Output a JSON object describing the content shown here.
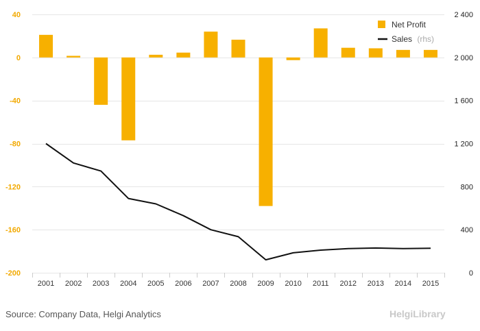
{
  "colors": {
    "profit": "#f7b000",
    "sales": "#111111",
    "grid": "#e6e6e6",
    "left_axis": "#f2a900"
  },
  "footer": {
    "source": "Source: Company Data, Helgi Analytics",
    "brand": "HelgiLibrary"
  },
  "chart_data": {
    "type": "bar",
    "categories": [
      "2001",
      "2002",
      "2003",
      "2004",
      "2005",
      "2006",
      "2007",
      "2008",
      "2009",
      "2010",
      "2011",
      "2012",
      "2013",
      "2014",
      "2015"
    ],
    "series": [
      {
        "name": "Net Profit",
        "type": "bar",
        "axis": "left",
        "values": [
          21,
          1.5,
          -44,
          -77,
          2.5,
          4.5,
          24,
          16.5,
          -138,
          -2.5,
          27,
          9,
          8.5,
          7,
          7
        ]
      },
      {
        "name": "Sales",
        "name_suffix": "(rhs)",
        "type": "line",
        "axis": "right",
        "values": [
          1200,
          1020,
          945,
          690,
          640,
          530,
          400,
          335,
          120,
          185,
          210,
          225,
          230,
          225,
          228
        ]
      }
    ],
    "left_axis": {
      "ylim": [
        -200,
        40
      ],
      "ticks": [
        "40",
        "0",
        "-40",
        "-80",
        "-120",
        "-160",
        "-200"
      ],
      "tick_values": [
        40,
        0,
        -40,
        -80,
        -120,
        -160,
        -200
      ]
    },
    "right_axis": {
      "ylim": [
        0,
        2400
      ],
      "ticks": [
        "2 400",
        "2 000",
        "1 600",
        "1 200",
        "800",
        "400",
        "0"
      ],
      "tick_values": [
        2400,
        2000,
        1600,
        1200,
        800,
        400,
        0
      ]
    },
    "legend_position": "top-right",
    "grid": true
  }
}
